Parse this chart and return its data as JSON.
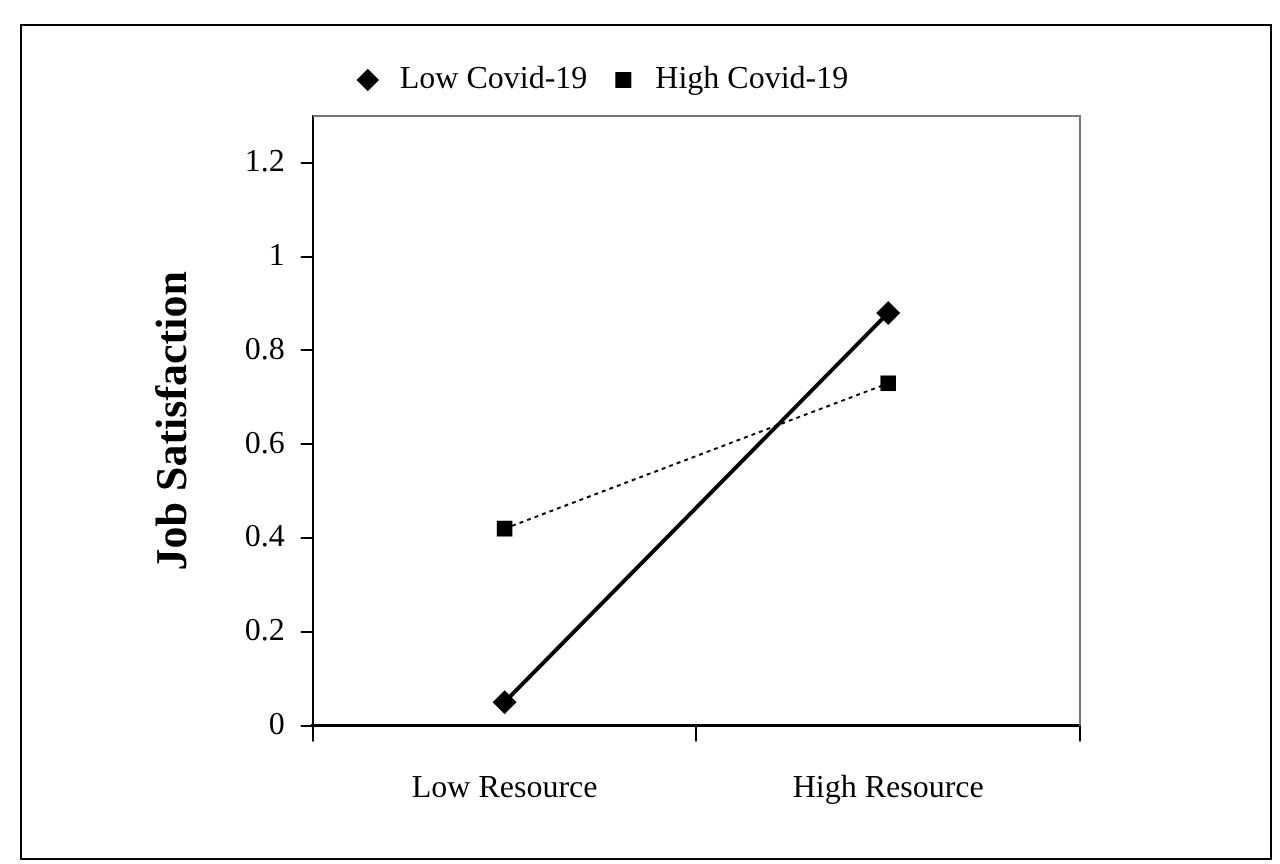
{
  "chart_data": {
    "type": "line",
    "ylabel": "Job Satisfaction",
    "categories": [
      "Low Resource",
      "High Resource"
    ],
    "series": [
      {
        "name": "Low Covid-19",
        "color": "#000000",
        "values": [
          0.05,
          0.88
        ],
        "marker": "diamond",
        "line_style": "solid"
      },
      {
        "name": "High Covid-19",
        "color": "#000000",
        "values": [
          0.42,
          0.73
        ],
        "marker": "square",
        "line_style": "dotted"
      }
    ],
    "ylim": [
      0,
      1.3
    ],
    "yticks": [
      0,
      0.2,
      0.4,
      0.6,
      0.8,
      1,
      1.2
    ],
    "grid": false,
    "legend": "top"
  }
}
